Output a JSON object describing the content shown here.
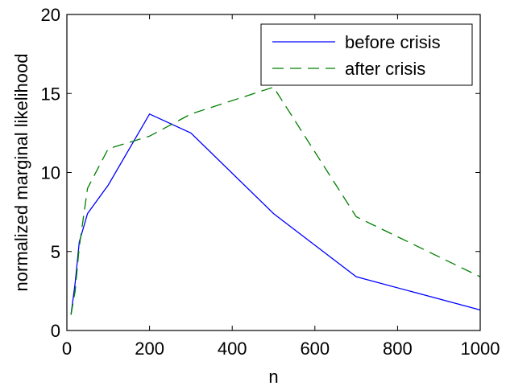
{
  "chart_data": {
    "type": "line",
    "xlabel": "n",
    "ylabel": "normalized marginal likelihood",
    "xlim": [
      0,
      1000
    ],
    "ylim": [
      0,
      20
    ],
    "xticks": [
      0,
      200,
      400,
      600,
      800,
      1000
    ],
    "yticks": [
      0,
      5,
      10,
      15,
      20
    ],
    "xtick_labels": [
      "0",
      "200",
      "400",
      "600",
      "800",
      "1000"
    ],
    "ytick_labels": [
      "0",
      "5",
      "10",
      "15",
      "20"
    ],
    "grid": false,
    "legend_position": "top-right",
    "series": [
      {
        "name": "before crisis",
        "color": "#0000ff",
        "style": "solid",
        "x": [
          10,
          20,
          30,
          50,
          100,
          200,
          300,
          500,
          700,
          1000
        ],
        "y": [
          1.0,
          3.0,
          5.6,
          7.4,
          9.2,
          13.7,
          12.5,
          7.4,
          3.4,
          1.3
        ]
      },
      {
        "name": "after crisis",
        "color": "#007f00",
        "style": "dashed",
        "x": [
          10,
          20,
          30,
          50,
          100,
          200,
          300,
          500,
          700,
          1000
        ],
        "y": [
          1.0,
          2.5,
          5.3,
          9.0,
          11.5,
          12.3,
          13.7,
          15.4,
          7.2,
          3.4
        ]
      }
    ]
  }
}
